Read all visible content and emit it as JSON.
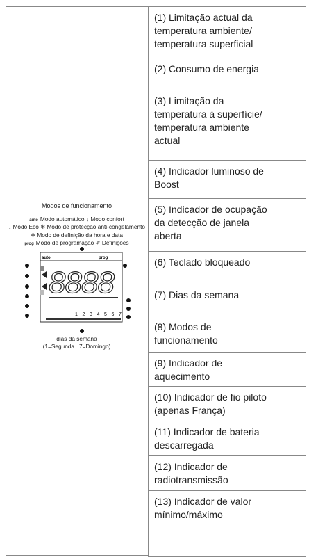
{
  "legend": {
    "title": "Modos de funcionamento",
    "lines": [
      [
        {
          "tag": "auto",
          "text": "Modo automático"
        },
        {
          "text": "Modo confort"
        }
      ],
      [
        {
          "text": "Modo Eco"
        },
        {
          "text": "Modo de protecção anti-congelamento"
        }
      ],
      [
        {
          "text": "Modo de definição da hora e data"
        }
      ],
      [
        {
          "tag": "prog",
          "text": "Modo de programação"
        },
        {
          "text": "Definições"
        }
      ]
    ]
  },
  "lcd": {
    "top": [
      "auto",
      "prog"
    ],
    "digits": "8888",
    "days": [
      "1",
      "2",
      "3",
      "4",
      "5",
      "6",
      "7"
    ]
  },
  "caption": [
    "dias da semana",
    "(1=Segunda...7=Domingo)"
  ],
  "rows": [
    [
      "(1) Limitação actual da",
      "temperatura ambiente/",
      "temperatura superficial"
    ],
    [
      "(2) Consumo de energia"
    ],
    [
      "(3) Limitação da",
      "temperatura à superfície/",
      "temperatura ambiente",
      "actual"
    ],
    [
      "(4) Indicador luminoso de",
      "Boost"
    ],
    [
      "(5) Indicador de ocupação",
      "da detecção de janela",
      "aberta"
    ],
    [
      "(6) Teclado bloqueado"
    ],
    [
      "(7) Dias da semana"
    ],
    [
      "(8) Modos de",
      "funcionamento"
    ],
    [
      "(9) Indicador de",
      "aquecimento"
    ],
    [
      "(10) Indicador de fio piloto",
      "(apenas França)"
    ],
    [
      "(11) Indicador de bateria",
      "descarregada"
    ],
    [
      "(12) Indicador de",
      "radiotransmissão"
    ],
    [
      "(13) Indicador de valor",
      "mínimo/máximo"
    ]
  ]
}
